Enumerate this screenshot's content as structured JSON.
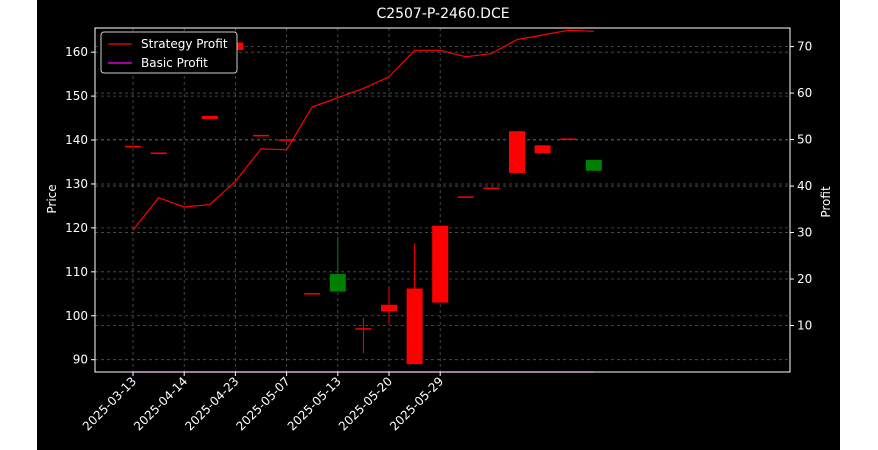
{
  "chart_data": {
    "type": "candlestick",
    "title": "C2507-P-2460.DCE",
    "xlabel": "",
    "ylabel_left": "Price",
    "ylabel_right": "Profit",
    "x_ticks": [
      "2025-03-13",
      "2025-04-14",
      "2025-04-23",
      "2025-05-07",
      "2025-05-13",
      "2025-05-20",
      "2025-05-29"
    ],
    "x_tick_index": [
      0,
      2,
      4,
      6,
      8,
      10,
      12
    ],
    "ylim_left": [
      87.2,
      165.5
    ],
    "yticks_left": [
      90,
      100,
      110,
      120,
      130,
      140,
      150,
      160
    ],
    "ylim_right": [
      0.0,
      74.0
    ],
    "yticks_right": [
      10,
      20,
      30,
      40,
      50,
      60,
      70
    ],
    "grid": true,
    "legend_position": "top-left",
    "colors": {
      "background": "#000000",
      "up": "#008000",
      "down": "#ff0000",
      "strategy": "#ff0000",
      "basic": "#ff00ff",
      "text": "#ffffff",
      "grid": "#555555"
    },
    "candles": [
      {
        "i": 0,
        "open": 138.5,
        "high": 138.5,
        "low": 138.5,
        "close": 138.5
      },
      {
        "i": 1,
        "open": 137.0,
        "high": 137.0,
        "low": 137.0,
        "close": 137.0
      },
      {
        "i": 2,
        "open": 156.0,
        "high": 156.0,
        "low": 155.2,
        "close": 155.2
      },
      {
        "i": 3,
        "open": 145.5,
        "high": 145.5,
        "low": 144.8,
        "close": 144.8
      },
      {
        "i": 4,
        "open": 162.2,
        "high": 162.2,
        "low": 160.5,
        "close": 160.5
      },
      {
        "i": 5,
        "open": 141.0,
        "high": 141.0,
        "low": 141.0,
        "close": 141.0
      },
      {
        "i": 6,
        "open": 140.0,
        "high": 140.0,
        "low": 140.0,
        "close": 140.0
      },
      {
        "i": 7,
        "open": 105.0,
        "high": 105.0,
        "low": 105.0,
        "close": 105.0
      },
      {
        "i": 8,
        "open": 105.5,
        "high": 118.0,
        "low": 105.5,
        "close": 109.5
      },
      {
        "i": 9,
        "open": 97.0,
        "high": 99.5,
        "low": 91.5,
        "close": 97.0
      },
      {
        "i": 10,
        "open": 102.5,
        "high": 106.5,
        "low": 98.0,
        "close": 101.0
      },
      {
        "i": 11,
        "open": 106.2,
        "high": 116.5,
        "low": 89.0,
        "close": 89.0
      },
      {
        "i": 12,
        "open": 120.5,
        "high": 120.5,
        "low": 103.0,
        "close": 103.0
      },
      {
        "i": 13,
        "open": 127.0,
        "high": 127.0,
        "low": 127.0,
        "close": 127.0
      },
      {
        "i": 14,
        "open": 129.0,
        "high": 129.0,
        "low": 129.0,
        "close": 129.0
      },
      {
        "i": 15,
        "open": 142.0,
        "high": 142.0,
        "low": 132.5,
        "close": 132.5
      },
      {
        "i": 16,
        "open": 138.8,
        "high": 138.8,
        "low": 137.0,
        "close": 137.0
      },
      {
        "i": 17,
        "open": 140.2,
        "high": 140.2,
        "low": 140.2,
        "close": 140.2
      },
      {
        "i": 18,
        "open": 133.0,
        "high": 135.5,
        "low": 133.0,
        "close": 135.5
      }
    ],
    "series": [
      {
        "name": "Strategy Profit",
        "axis": "right",
        "color": "#ff0000",
        "x": [
          0,
          1,
          2,
          3,
          4,
          5,
          6,
          7,
          8,
          9,
          10,
          11,
          12,
          13,
          14,
          15,
          16,
          17,
          18
        ],
        "values": [
          30.5,
          37.5,
          35.5,
          36.0,
          41.0,
          48.0,
          47.8,
          57.0,
          59.0,
          61.0,
          63.5,
          69.2,
          69.2,
          67.8,
          68.5,
          71.5,
          72.5,
          73.5,
          73.3
        ]
      },
      {
        "name": "Basic Profit",
        "axis": "right",
        "color": "#ff00ff",
        "x": [
          0,
          18
        ],
        "values": [
          0.0,
          0.0
        ]
      }
    ]
  }
}
